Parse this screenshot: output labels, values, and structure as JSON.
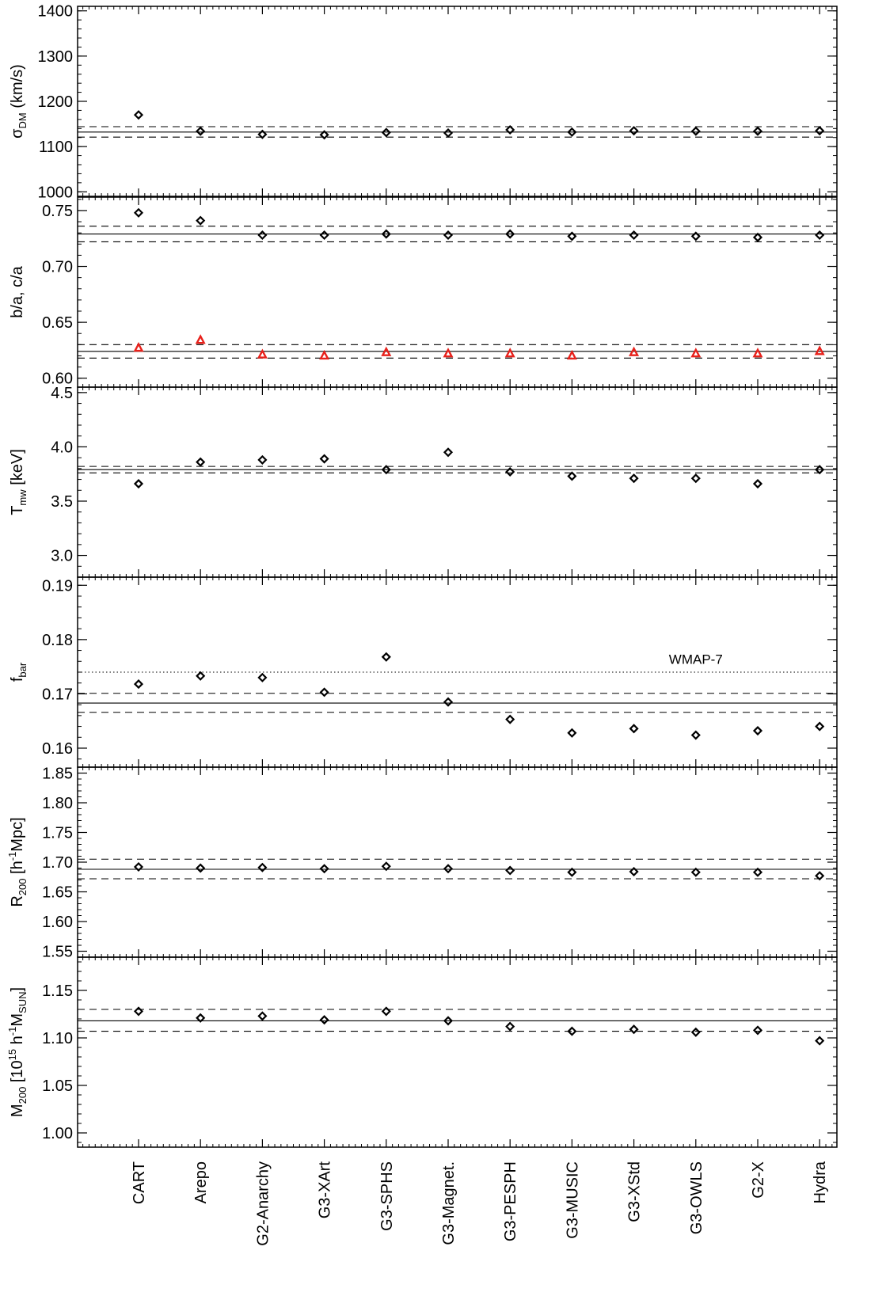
{
  "chart_data": [
    {
      "type": "scatter",
      "ylabel_main": "σ",
      "ylabel_sub": "DM",
      "ylabel_tail": " (km/s)",
      "ylim": [
        990,
        1410
      ],
      "yticks": [
        1000,
        1100,
        1200,
        1300,
        1400
      ],
      "ytick_labels": [
        "1000",
        "1100",
        "1200",
        "1300",
        "1400"
      ],
      "hlines": [
        {
          "y": 1132,
          "style": "solid"
        },
        {
          "y": 1144,
          "style": "dashed"
        },
        {
          "y": 1121,
          "style": "dashed"
        }
      ],
      "series": [
        {
          "marker": "diamond",
          "color": "#000000",
          "values": [
            1170,
            1134,
            1127,
            1126,
            1131,
            1130,
            1137,
            1132,
            1135,
            1134,
            1134,
            1135
          ]
        }
      ]
    },
    {
      "type": "scatter",
      "ylabel_main": "b/a, c/a",
      "ylabel_sub": "",
      "ylabel_tail": "",
      "ylim": [
        0.592,
        0.762
      ],
      "yticks": [
        0.6,
        0.65,
        0.7,
        0.75
      ],
      "ytick_labels": [
        "0.60",
        "0.65",
        "0.70",
        "0.75"
      ],
      "hlines": [
        {
          "y": 0.729,
          "style": "solid"
        },
        {
          "y": 0.736,
          "style": "dashed"
        },
        {
          "y": 0.722,
          "style": "dashed"
        },
        {
          "y": 0.624,
          "style": "solid"
        },
        {
          "y": 0.63,
          "style": "dashed"
        },
        {
          "y": 0.618,
          "style": "dashed"
        }
      ],
      "series": [
        {
          "marker": "diamond",
          "color": "#000000",
          "values": [
            0.748,
            0.741,
            0.728,
            0.728,
            0.729,
            0.728,
            0.729,
            0.727,
            0.728,
            0.727,
            0.726,
            0.728
          ]
        },
        {
          "marker": "triangle",
          "color": "#e8211b",
          "values": [
            0.627,
            0.634,
            0.621,
            0.62,
            0.623,
            0.622,
            0.622,
            0.62,
            0.623,
            0.622,
            0.622,
            0.624
          ]
        }
      ]
    },
    {
      "type": "scatter",
      "ylabel_main": "T",
      "ylabel_sub": "mw",
      "ylabel_tail": " [keV]",
      "ylim": [
        2.8,
        4.55
      ],
      "yticks": [
        3.0,
        3.5,
        4.0,
        4.5
      ],
      "ytick_labels": [
        "3.0",
        "3.5",
        "4.0",
        "4.5"
      ],
      "hlines": [
        {
          "y": 3.79,
          "style": "solid"
        },
        {
          "y": 3.82,
          "style": "dashed"
        },
        {
          "y": 3.76,
          "style": "dashed"
        }
      ],
      "series": [
        {
          "marker": "diamond",
          "color": "#000000",
          "values": [
            3.66,
            3.86,
            3.88,
            3.89,
            3.79,
            3.95,
            3.77,
            3.73,
            3.71,
            3.71,
            3.66,
            3.79
          ]
        }
      ]
    },
    {
      "type": "scatter",
      "ylabel_main": "f",
      "ylabel_sub": "bar",
      "ylabel_tail": "",
      "ylim": [
        0.1565,
        0.1915
      ],
      "yticks": [
        0.16,
        0.17,
        0.18,
        0.19
      ],
      "ytick_labels": [
        "0.16",
        "0.17",
        "0.18",
        "0.19"
      ],
      "hlines": [
        {
          "y": 0.1683,
          "style": "solid"
        },
        {
          "y": 0.1701,
          "style": "dashed"
        },
        {
          "y": 0.1666,
          "style": "dashed"
        },
        {
          "y": 0.174,
          "style": "dotted"
        }
      ],
      "annotation": {
        "text": "WMAP-7",
        "x_index": 9,
        "y": 0.1755
      },
      "series": [
        {
          "marker": "diamond",
          "color": "#000000",
          "values": [
            0.1718,
            0.1733,
            0.173,
            0.1703,
            0.1768,
            0.1685,
            0.1653,
            0.1628,
            0.1636,
            0.1624,
            0.1632,
            0.164
          ]
        }
      ]
    },
    {
      "type": "scatter",
      "ylabel_main": "R",
      "ylabel_sub": "200",
      "ylabel_tail": " [h",
      "ylabel_sup": "-1",
      "ylabel_end": "Mpc]",
      "ylim": [
        1.54,
        1.86
      ],
      "yticks": [
        1.55,
        1.6,
        1.65,
        1.7,
        1.75,
        1.8,
        1.85
      ],
      "ytick_labels": [
        "1.55",
        "1.60",
        "1.65",
        "1.70",
        "1.75",
        "1.80",
        "1.85"
      ],
      "hlines": [
        {
          "y": 1.688,
          "style": "solid"
        },
        {
          "y": 1.705,
          "style": "dashed"
        },
        {
          "y": 1.672,
          "style": "dashed"
        }
      ],
      "series": [
        {
          "marker": "diamond",
          "color": "#000000",
          "values": [
            1.692,
            1.69,
            1.691,
            1.689,
            1.693,
            1.689,
            1.686,
            1.683,
            1.684,
            1.683,
            1.683,
            1.677
          ]
        }
      ]
    },
    {
      "type": "scatter",
      "ylabel_main": "M",
      "ylabel_sub": "200",
      "ylabel_tail": " [10",
      "ylabel_sup": "15",
      "ylabel_mid": " h",
      "ylabel_sup2": "-1",
      "ylabel_mid2": "M",
      "ylabel_sub2": "SUN",
      "ylabel_end": "]",
      "ylim": [
        0.985,
        1.185
      ],
      "yticks": [
        1.0,
        1.05,
        1.1,
        1.15
      ],
      "ytick_labels": [
        "1.00",
        "1.05",
        "1.10",
        "1.15"
      ],
      "hlines": [
        {
          "y": 1.118,
          "style": "solid"
        },
        {
          "y": 1.13,
          "style": "dashed"
        },
        {
          "y": 1.107,
          "style": "dashed"
        }
      ],
      "series": [
        {
          "marker": "diamond",
          "color": "#000000",
          "values": [
            1.128,
            1.121,
            1.123,
            1.119,
            1.128,
            1.118,
            1.112,
            1.107,
            1.109,
            1.106,
            1.108,
            1.097
          ]
        }
      ]
    }
  ],
  "categories": [
    "CART",
    "Arepo",
    "G2-Anarchy",
    "G3-XArt",
    "G3-SPHS",
    "G3-Magnet.",
    "G3-PESPH",
    "G3-MUSIC",
    "G3-XStd",
    "G3-OWLS",
    "G2-X",
    "Hydra"
  ]
}
